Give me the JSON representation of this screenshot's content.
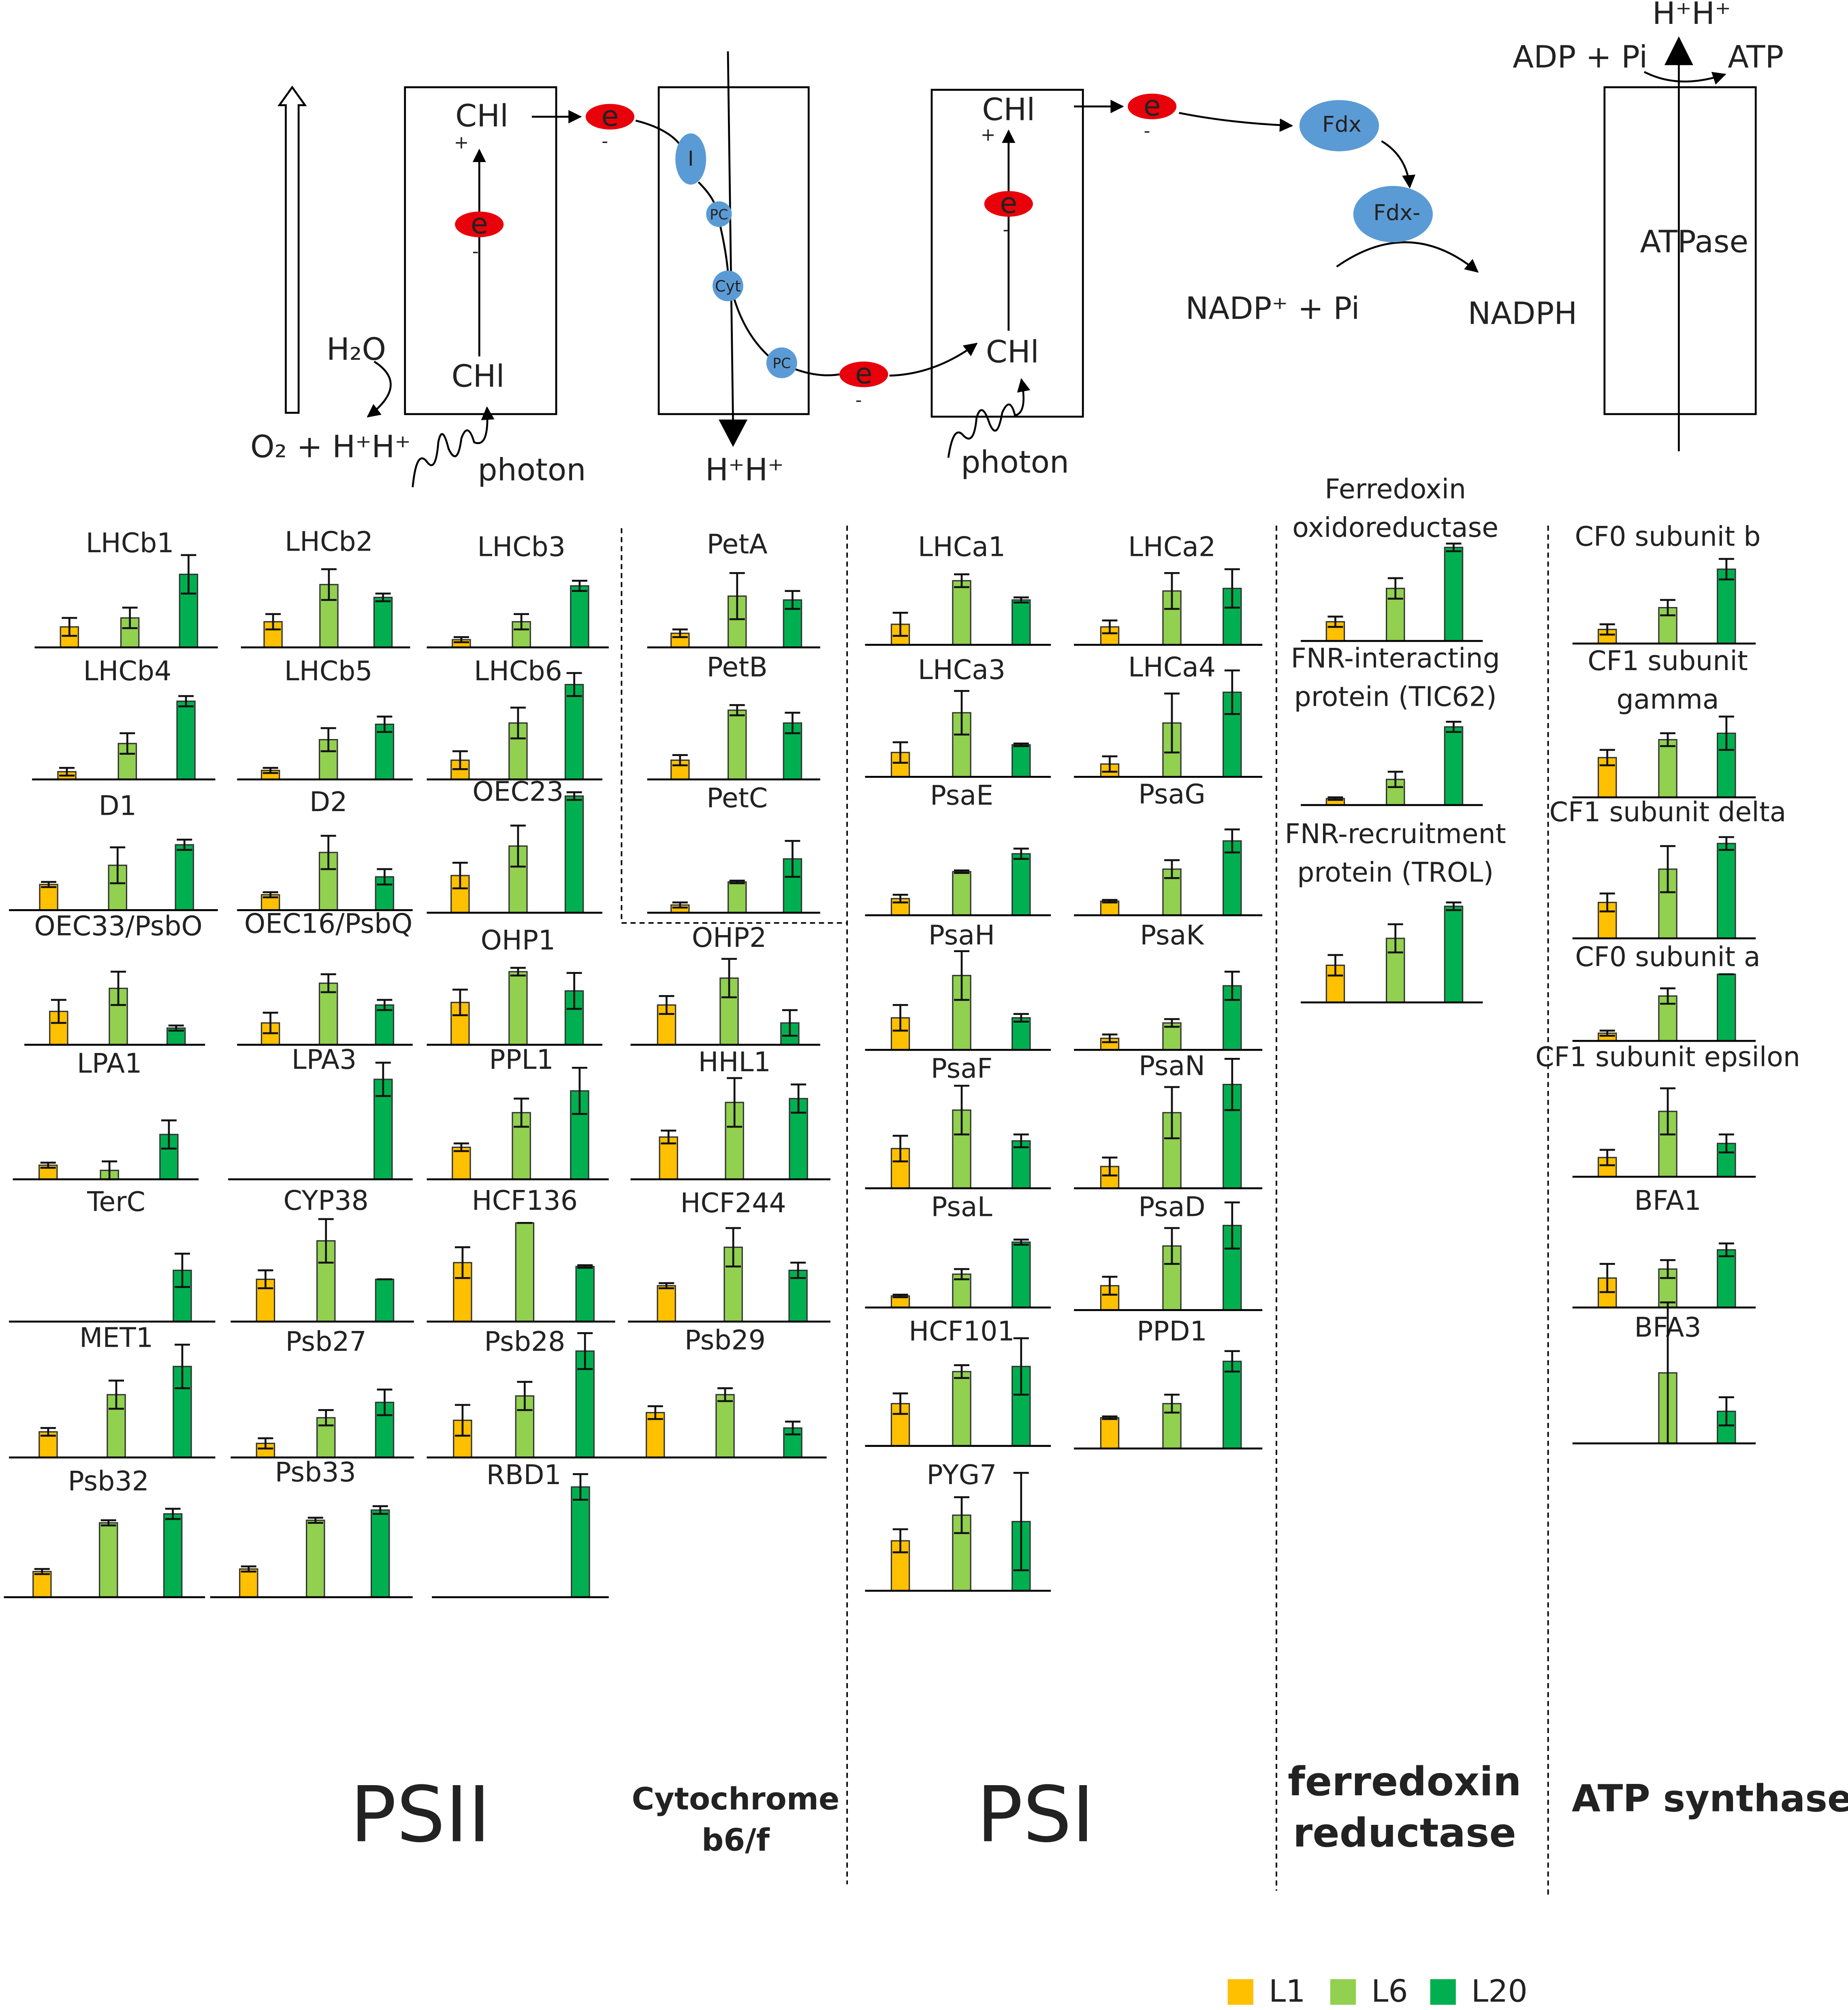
{
  "legend": [
    {
      "name": "L1",
      "color": "#ffc000"
    },
    {
      "name": "L6",
      "color": "#92d050"
    },
    {
      "name": "L20",
      "color": "#00b050"
    }
  ],
  "groups": [
    "PSII",
    [
      "Cytochrome",
      "b6/f"
    ],
    "PSI",
    [
      "ferredoxin",
      "reductase"
    ],
    "ATP synthase"
  ],
  "diagram": {
    "labels": [
      "CHl",
      "+",
      "e",
      "-",
      "CHl",
      "H₂O",
      "O₂ + H⁺H⁺",
      "photon",
      "e",
      "-",
      "I",
      "PC",
      "Cyt",
      "PC",
      "e",
      "-",
      "H⁺H⁺",
      "CHl",
      "+",
      "e",
      "-",
      "CHl",
      "photon",
      "e",
      "-",
      "Fdx",
      "Fdx-",
      "NADP⁺ + Pi",
      "NADPH",
      "ADP + Pi",
      "ATP",
      "H⁺H⁺",
      "ATPase"
    ]
  },
  "chart_data": [
    {
      "type": "bar",
      "title": "LHCb1",
      "values": [
        16,
        23,
        57
      ],
      "errors": [
        7,
        8,
        15
      ]
    },
    {
      "type": "bar",
      "title": "LHCb2",
      "values": [
        20,
        49,
        39
      ],
      "errors": [
        6,
        12,
        3
      ]
    },
    {
      "type": "bar",
      "title": "LHCb3",
      "values": [
        6,
        20,
        48
      ],
      "errors": [
        2,
        6,
        4
      ]
    },
    {
      "type": "bar",
      "title": "LHCb4",
      "values": [
        6,
        28,
        61
      ],
      "errors": [
        3,
        8,
        4
      ]
    },
    {
      "type": "bar",
      "title": "LHCb5",
      "values": [
        7,
        31,
        43
      ],
      "errors": [
        2,
        9,
        6
      ]
    },
    {
      "type": "bar",
      "title": "LHCb6",
      "values": [
        15,
        44,
        74
      ],
      "errors": [
        7,
        12,
        9
      ]
    },
    {
      "type": "bar",
      "title": "D1",
      "values": [
        20,
        35,
        51
      ],
      "errors": [
        2,
        14,
        4
      ]
    },
    {
      "type": "bar",
      "title": "D2",
      "values": [
        12,
        45,
        26
      ],
      "errors": [
        2,
        13,
        6
      ]
    },
    {
      "type": "bar",
      "title": "OEC23",
      "values": [
        29,
        52,
        91
      ],
      "errors": [
        10,
        16,
        3
      ]
    },
    {
      "type": "bar",
      "title": "OEC33/PsbO",
      "values": [
        26,
        44,
        13
      ],
      "errors": [
        9,
        13,
        2
      ]
    },
    {
      "type": "bar",
      "title": "OEC16/PsbQ",
      "values": [
        17,
        48,
        31
      ],
      "errors": [
        8,
        7,
        4
      ]
    },
    {
      "type": "bar",
      "title": "OHP1",
      "values": [
        33,
        57,
        42
      ],
      "errors": [
        10,
        3,
        14
      ]
    },
    {
      "type": "bar",
      "title": "OHP2",
      "values": [
        31,
        52,
        17
      ],
      "errors": [
        7,
        15,
        10
      ]
    },
    {
      "type": "bar",
      "title": "LPA1",
      "values": [
        11,
        7,
        35
      ],
      "errors": [
        2,
        7,
        11
      ]
    },
    {
      "type": "bar",
      "title": "LPA3",
      "values": [
        0,
        0,
        78
      ],
      "errors": [
        0,
        0,
        13
      ]
    },
    {
      "type": "bar",
      "title": "PPL1",
      "values": [
        25,
        52,
        69
      ],
      "errors": [
        3,
        11,
        18
      ]
    },
    {
      "type": "bar",
      "title": "HHL1",
      "values": [
        33,
        60,
        63
      ],
      "errors": [
        5,
        19,
        11
      ]
    },
    {
      "type": "bar",
      "title": "TerC",
      "values": [
        0,
        0,
        40
      ],
      "errors": [
        0,
        0,
        13
      ]
    },
    {
      "type": "bar",
      "title": "CYP38",
      "values": [
        33,
        63,
        33
      ],
      "errors": [
        7,
        17,
        0
      ]
    },
    {
      "type": "bar",
      "title": "HCF136",
      "values": [
        46,
        77,
        43
      ],
      "errors": [
        12,
        0,
        1
      ]
    },
    {
      "type": "bar",
      "title": "HCF244",
      "values": [
        28,
        58,
        40
      ],
      "errors": [
        2,
        15,
        6
      ]
    },
    {
      "type": "bar",
      "title": "MET1",
      "values": [
        20,
        49,
        71
      ],
      "errors": [
        3,
        11,
        17
      ]
    },
    {
      "type": "bar",
      "title": "Psb27",
      "values": [
        11,
        31,
        43
      ],
      "errors": [
        4,
        6,
        10
      ]
    },
    {
      "type": "bar",
      "title": "Psb28",
      "values": [
        29,
        48,
        83
      ],
      "errors": [
        12,
        11,
        14
      ]
    },
    {
      "type": "bar",
      "title": "Psb29",
      "values": [
        35,
        49,
        23
      ],
      "errors": [
        5,
        5,
        5
      ]
    },
    {
      "type": "bar",
      "title": "Psb32",
      "values": [
        20,
        58,
        65
      ],
      "errors": [
        2,
        2,
        4
      ]
    },
    {
      "type": "bar",
      "title": "Psb33",
      "values": [
        22,
        60,
        68
      ],
      "errors": [
        2,
        2,
        3
      ]
    },
    {
      "type": "bar",
      "title": "RBD1",
      "values": [
        0,
        0,
        86
      ],
      "errors": [
        0,
        0,
        10
      ]
    },
    {
      "type": "bar",
      "title": "PetA",
      "values": [
        11,
        40,
        37
      ],
      "errors": [
        3,
        18,
        7
      ]
    },
    {
      "type": "bar",
      "title": "PetB",
      "values": [
        15,
        54,
        44
      ],
      "errors": [
        4,
        4,
        8
      ]
    },
    {
      "type": "bar",
      "title": "PetC",
      "values": [
        6,
        24,
        42
      ],
      "errors": [
        2,
        1,
        14
      ]
    },
    {
      "type": "bar",
      "title": "LHCa1",
      "values": [
        16,
        50,
        35
      ],
      "errors": [
        9,
        5,
        2
      ]
    },
    {
      "type": "bar",
      "title": "LHCa3",
      "values": [
        19,
        50,
        25
      ],
      "errors": [
        8,
        17,
        1
      ]
    },
    {
      "type": "bar",
      "title": "PsaE",
      "values": [
        13,
        34,
        48
      ],
      "errors": [
        3,
        1,
        4
      ]
    },
    {
      "type": "bar",
      "title": "PsaH",
      "values": [
        25,
        58,
        25
      ],
      "errors": [
        10,
        19,
        3
      ]
    },
    {
      "type": "bar",
      "title": "PsaF",
      "values": [
        31,
        61,
        37
      ],
      "errors": [
        10,
        19,
        5
      ]
    },
    {
      "type": "bar",
      "title": "PsaL",
      "values": [
        9,
        26,
        51
      ],
      "errors": [
        1,
        4,
        2
      ]
    },
    {
      "type": "bar",
      "title": "HCF101",
      "values": [
        33,
        58,
        62
      ],
      "errors": [
        8,
        5,
        22
      ]
    },
    {
      "type": "bar",
      "title": "PYG7",
      "values": [
        39,
        59,
        54
      ],
      "errors": [
        9,
        14,
        38
      ]
    },
    {
      "type": "bar",
      "title": "LHCa2",
      "values": [
        14,
        42,
        44
      ],
      "errors": [
        5,
        14,
        15
      ]
    },
    {
      "type": "bar",
      "title": "LHCa4",
      "values": [
        10,
        42,
        66
      ],
      "errors": [
        6,
        23,
        17
      ]
    },
    {
      "type": "bar",
      "title": "PsaG",
      "values": [
        11,
        36,
        58
      ],
      "errors": [
        1,
        7,
        9
      ]
    },
    {
      "type": "bar",
      "title": "PsaK",
      "values": [
        9,
        21,
        50
      ],
      "errors": [
        3,
        3,
        11
      ]
    },
    {
      "type": "bar",
      "title": "PsaN",
      "values": [
        17,
        59,
        81
      ],
      "errors": [
        7,
        20,
        20
      ]
    },
    {
      "type": "bar",
      "title": "PsaD",
      "values": [
        19,
        50,
        66
      ],
      "errors": [
        7,
        14,
        18
      ]
    },
    {
      "type": "bar",
      "title": "PPD1",
      "values": [
        24,
        35,
        68
      ],
      "errors": [
        1,
        7,
        8
      ]
    },
    {
      "type": "bar",
      "title": [
        "Ferredoxin",
        "oxidoreductase"
      ],
      "values": [
        15,
        41,
        73
      ],
      "errors": [
        4,
        8,
        3
      ]
    },
    {
      "type": "bar",
      "title": [
        "FNR-interacting",
        "protein (TIC62)"
      ],
      "values": [
        5,
        20,
        61
      ],
      "errors": [
        1,
        6,
        4
      ]
    },
    {
      "type": "bar",
      "title": [
        "FNR-recruitment",
        "protein (TROL)"
      ],
      "values": [
        29,
        50,
        75
      ],
      "errors": [
        8,
        11,
        3
      ]
    },
    {
      "type": "bar",
      "title": "CF0 subunit b",
      "values": [
        11,
        28,
        58
      ],
      "errors": [
        4,
        6,
        8
      ]
    },
    {
      "type": "bar",
      "title": [
        "CF1 subunit",
        "gamma"
      ],
      "values": [
        31,
        45,
        50
      ],
      "errors": [
        6,
        5,
        13
      ]
    },
    {
      "type": "bar",
      "title": "CF1 subunit delta",
      "values": [
        28,
        54,
        74
      ],
      "errors": [
        7,
        18,
        5
      ]
    },
    {
      "type": "bar",
      "title": "CF0 subunit a",
      "values": [
        6,
        35,
        52
      ],
      "errors": [
        2,
        6,
        0
      ]
    },
    {
      "type": "bar",
      "title": "CF1 subunit epsilon",
      "values": [
        15,
        51,
        26
      ],
      "errors": [
        6,
        18,
        7
      ]
    },
    {
      "type": "bar",
      "title": "BFA1",
      "values": [
        23,
        30,
        45
      ],
      "errors": [
        11,
        7,
        5
      ]
    },
    {
      "type": "bar",
      "title": "BFA3",
      "values": [
        0,
        55,
        25
      ],
      "errors": [
        0,
        55,
        11
      ]
    }
  ]
}
